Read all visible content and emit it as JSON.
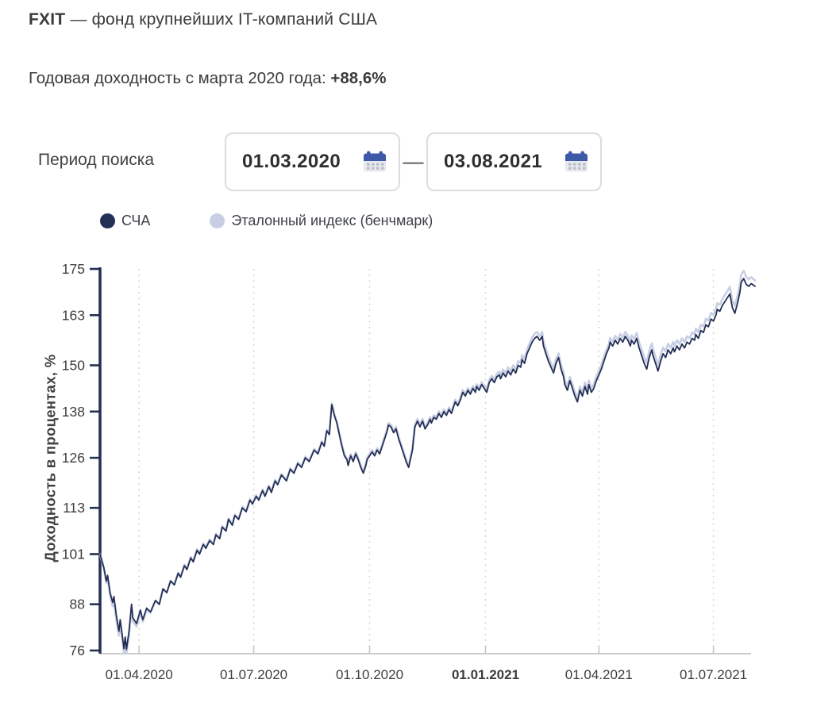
{
  "header": {
    "ticker": "FXIT",
    "title_rest": " — фонд крупнейших IT-компаний США",
    "subtitle_prefix": "Годовая доходность с марта 2020 года: ",
    "subtitle_value": "+88,6%"
  },
  "period": {
    "label": "Период поиска",
    "from": "01.03.2020",
    "to": "03.08.2021",
    "separator": "—",
    "calendar_icon": "calendar-icon",
    "calendar_color": "#3d59a8"
  },
  "chart_data": {
    "type": "line",
    "title": "",
    "xlabel": "",
    "ylabel": "Доходность в процентах, %",
    "grid": "vertical-dotted",
    "legend_position": "top-left",
    "colors": {
      "primary": "#232f55",
      "benchmark": "#c8cee4",
      "grid": "#d2d2d2",
      "axis": "#cbcbcb",
      "text": "#3d3d3d"
    },
    "x_axis": {
      "unit": "days since 01.03.2020",
      "min": 0,
      "max": 520,
      "ticks": [
        {
          "day": 31,
          "label": "01.04.2020",
          "bold": false
        },
        {
          "day": 122,
          "label": "01.07.2020",
          "bold": false
        },
        {
          "day": 214,
          "label": "01.10.2020",
          "bold": false
        },
        {
          "day": 306,
          "label": "01.01.2021",
          "bold": true
        },
        {
          "day": 396,
          "label": "01.04.2021",
          "bold": false
        },
        {
          "day": 487,
          "label": "01.07.2021",
          "bold": false
        }
      ]
    },
    "y_axis": {
      "min": 76,
      "max": 175,
      "ticks": [
        76,
        88,
        101,
        113,
        126,
        138,
        150,
        163,
        175
      ]
    },
    "series": [
      {
        "name": "СЧА",
        "color": "#232f55",
        "points": [
          [
            0,
            101
          ],
          [
            3,
            97.5
          ],
          [
            5,
            94
          ],
          [
            6,
            95.5
          ],
          [
            8,
            91
          ],
          [
            10,
            88.5
          ],
          [
            11,
            90
          ],
          [
            13,
            85
          ],
          [
            15,
            81
          ],
          [
            16,
            84
          ],
          [
            18,
            79
          ],
          [
            19,
            76.5
          ],
          [
            20,
            79.5
          ],
          [
            21,
            76.3
          ],
          [
            23,
            81
          ],
          [
            25,
            88
          ],
          [
            26,
            84.5
          ],
          [
            29,
            83
          ],
          [
            32,
            86.5
          ],
          [
            34,
            84
          ],
          [
            37,
            87
          ],
          [
            40,
            86
          ],
          [
            44,
            89
          ],
          [
            47,
            88
          ],
          [
            50,
            92
          ],
          [
            53,
            91
          ],
          [
            56,
            94
          ],
          [
            59,
            93
          ],
          [
            62,
            96
          ],
          [
            64,
            95
          ],
          [
            67,
            98
          ],
          [
            69,
            97
          ],
          [
            72,
            100
          ],
          [
            74,
            99
          ],
          [
            77,
            102
          ],
          [
            79,
            101
          ],
          [
            82,
            103.5
          ],
          [
            84,
            102.5
          ],
          [
            87,
            104.5
          ],
          [
            90,
            103.5
          ],
          [
            92,
            106
          ],
          [
            95,
            105
          ],
          [
            97,
            108
          ],
          [
            100,
            107
          ],
          [
            102,
            110
          ],
          [
            105,
            108.5
          ],
          [
            107,
            111
          ],
          [
            110,
            110
          ],
          [
            113,
            113
          ],
          [
            116,
            112
          ],
          [
            119,
            115
          ],
          [
            121,
            114
          ],
          [
            124,
            116
          ],
          [
            126,
            115
          ],
          [
            129,
            117.5
          ],
          [
            131,
            116
          ],
          [
            134,
            118.5
          ],
          [
            136,
            117
          ],
          [
            139,
            120
          ],
          [
            141,
            119
          ],
          [
            144,
            121.5
          ],
          [
            148,
            120
          ],
          [
            151,
            123
          ],
          [
            154,
            122
          ],
          [
            157,
            124.5
          ],
          [
            160,
            123.5
          ],
          [
            163,
            126
          ],
          [
            166,
            125
          ],
          [
            170,
            128
          ],
          [
            173,
            127
          ],
          [
            176,
            130
          ],
          [
            178,
            129
          ],
          [
            180,
            133
          ],
          [
            182,
            132
          ],
          [
            184,
            139.8
          ],
          [
            186,
            137
          ],
          [
            188,
            135
          ],
          [
            190,
            132
          ],
          [
            192,
            129
          ],
          [
            194,
            126.5
          ],
          [
            196,
            125.5
          ],
          [
            197,
            124
          ],
          [
            199,
            126.5
          ],
          [
            201,
            125
          ],
          [
            203,
            127
          ],
          [
            205,
            125.5
          ],
          [
            207,
            123.5
          ],
          [
            209,
            122
          ],
          [
            211,
            124
          ],
          [
            212,
            125.5
          ],
          [
            214,
            126.5
          ],
          [
            216,
            127.5
          ],
          [
            218,
            126.5
          ],
          [
            220,
            128
          ],
          [
            222,
            127
          ],
          [
            224,
            129
          ],
          [
            226,
            131
          ],
          [
            228,
            133
          ],
          [
            229,
            134.5
          ],
          [
            231,
            134
          ],
          [
            233,
            132.5
          ],
          [
            235,
            133.5
          ],
          [
            237,
            131
          ],
          [
            239,
            129
          ],
          [
            241,
            127
          ],
          [
            243,
            125
          ],
          [
            245,
            123.5
          ],
          [
            246,
            125
          ],
          [
            248,
            128
          ],
          [
            249,
            131
          ],
          [
            250,
            134
          ],
          [
            252,
            135.5
          ],
          [
            254,
            134
          ],
          [
            256,
            135.5
          ],
          [
            258,
            133.5
          ],
          [
            260,
            134.5
          ],
          [
            262,
            136
          ],
          [
            263,
            135
          ],
          [
            265,
            136.5
          ],
          [
            267,
            136
          ],
          [
            269,
            137.5
          ],
          [
            271,
            136.5
          ],
          [
            273,
            138
          ],
          [
            275,
            137
          ],
          [
            277,
            138.5
          ],
          [
            279,
            137.5
          ],
          [
            281,
            139.5
          ],
          [
            282,
            140.5
          ],
          [
            284,
            139.5
          ],
          [
            286,
            141
          ],
          [
            288,
            143
          ],
          [
            290,
            142
          ],
          [
            292,
            143.5
          ],
          [
            294,
            142.5
          ],
          [
            296,
            144
          ],
          [
            298,
            143
          ],
          [
            299,
            144.5
          ],
          [
            301,
            143.5
          ],
          [
            303,
            145
          ],
          [
            305,
            144
          ],
          [
            307,
            143
          ],
          [
            309,
            145.5
          ],
          [
            311,
            146.5
          ],
          [
            313,
            145.5
          ],
          [
            315,
            147
          ],
          [
            317,
            147.5
          ],
          [
            318,
            146.5
          ],
          [
            320,
            148
          ],
          [
            322,
            147
          ],
          [
            324,
            148.5
          ],
          [
            326,
            147.5
          ],
          [
            328,
            149
          ],
          [
            330,
            148
          ],
          [
            332,
            150
          ],
          [
            334,
            149.5
          ],
          [
            335,
            151.5
          ],
          [
            337,
            150.5
          ],
          [
            339,
            153
          ],
          [
            341,
            154.5
          ],
          [
            343,
            156
          ],
          [
            345,
            157
          ],
          [
            347,
            157.5
          ],
          [
            349,
            156.5
          ],
          [
            351,
            157.5
          ],
          [
            352,
            155
          ],
          [
            354,
            153
          ],
          [
            356,
            151
          ],
          [
            358,
            149.5
          ],
          [
            360,
            148
          ],
          [
            362,
            150.5
          ],
          [
            364,
            152
          ],
          [
            366,
            149
          ],
          [
            368,
            147
          ],
          [
            369,
            145
          ],
          [
            371,
            143.5
          ],
          [
            373,
            146
          ],
          [
            375,
            144
          ],
          [
            377,
            142
          ],
          [
            379,
            140.5
          ],
          [
            381,
            143.5
          ],
          [
            383,
            142
          ],
          [
            385,
            144.5
          ],
          [
            387,
            142.5
          ],
          [
            388,
            145
          ],
          [
            390,
            143
          ],
          [
            392,
            144
          ],
          [
            394,
            146
          ],
          [
            396,
            147.5
          ],
          [
            398,
            149
          ],
          [
            400,
            151
          ],
          [
            402,
            153
          ],
          [
            404,
            154.5
          ],
          [
            405,
            156
          ],
          [
            407,
            155
          ],
          [
            409,
            156.5
          ],
          [
            411,
            155.5
          ],
          [
            413,
            157
          ],
          [
            415,
            156
          ],
          [
            417,
            157.5
          ],
          [
            419,
            156.5
          ],
          [
            421,
            155
          ],
          [
            422,
            156.5
          ],
          [
            424,
            155.5
          ],
          [
            426,
            157
          ],
          [
            428,
            154.5
          ],
          [
            430,
            152.5
          ],
          [
            432,
            150.5
          ],
          [
            434,
            149
          ],
          [
            436,
            152
          ],
          [
            438,
            154
          ],
          [
            439,
            152.5
          ],
          [
            441,
            150.5
          ],
          [
            443,
            148.5
          ],
          [
            445,
            151
          ],
          [
            447,
            153
          ],
          [
            449,
            152
          ],
          [
            451,
            154
          ],
          [
            453,
            153
          ],
          [
            455,
            154.5
          ],
          [
            456,
            153.5
          ],
          [
            458,
            155
          ],
          [
            460,
            154
          ],
          [
            462,
            155.5
          ],
          [
            464,
            154.5
          ],
          [
            466,
            156
          ],
          [
            468,
            155.5
          ],
          [
            470,
            157
          ],
          [
            472,
            156.5
          ],
          [
            473,
            158
          ],
          [
            475,
            157
          ],
          [
            477,
            159
          ],
          [
            479,
            158.5
          ],
          [
            481,
            160.5
          ],
          [
            483,
            160
          ],
          [
            485,
            162
          ],
          [
            487,
            161.5
          ],
          [
            489,
            163
          ],
          [
            490,
            164.5
          ],
          [
            492,
            164
          ],
          [
            494,
            165.5
          ],
          [
            496,
            166.5
          ],
          [
            498,
            167.5
          ],
          [
            500,
            168.5
          ],
          [
            502,
            165
          ],
          [
            504,
            163.5
          ],
          [
            506,
            166
          ],
          [
            508,
            169
          ],
          [
            509,
            171.5
          ],
          [
            511,
            172.5
          ],
          [
            513,
            171
          ],
          [
            515,
            170.5
          ],
          [
            517,
            171.2
          ],
          [
            520,
            170.5
          ]
        ]
      },
      {
        "name": "Эталонный индекс (бенчмарк)",
        "color": "#c8cee4",
        "derived_from": "СЧА",
        "delta_points": [
          [
            0,
            0
          ],
          [
            5,
            -0.5
          ],
          [
            12,
            -1.2
          ],
          [
            25,
            -1
          ],
          [
            40,
            -0.3
          ],
          [
            60,
            0.3
          ],
          [
            180,
            0.3
          ],
          [
            200,
            0.5
          ],
          [
            300,
            0.6
          ],
          [
            340,
            1.2
          ],
          [
            380,
            1
          ],
          [
            420,
            1.2
          ],
          [
            435,
            1.7
          ],
          [
            460,
            1.5
          ],
          [
            490,
            1.6
          ],
          [
            500,
            1.8
          ],
          [
            508,
            2
          ],
          [
            511,
            2
          ],
          [
            515,
            1.8
          ],
          [
            520,
            1.5
          ]
        ]
      }
    ]
  }
}
